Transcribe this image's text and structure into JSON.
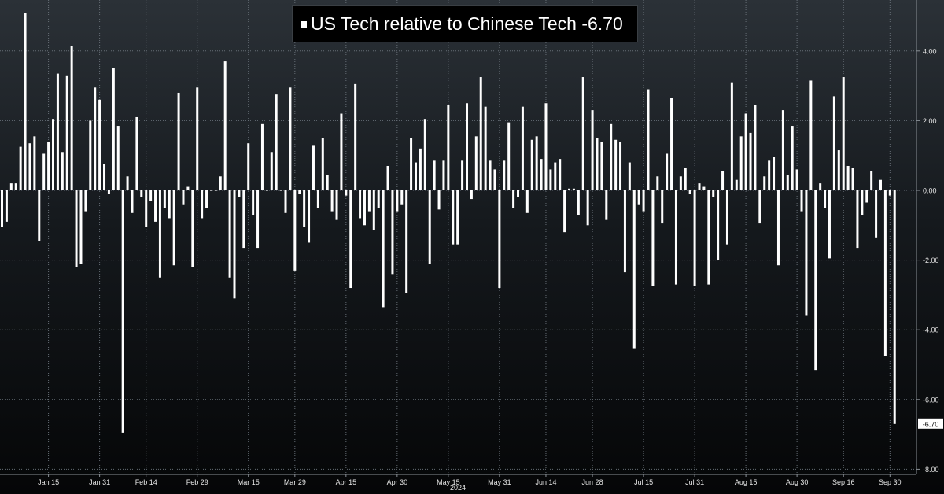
{
  "colors": {
    "bar": "#ffffff",
    "grid": "#666e76",
    "axis_text": "#e6e6e6",
    "background_top": "#2b3137",
    "background_bottom": "#050607"
  },
  "legend": {
    "label": "US Tech relative to Chinese Tech",
    "value": "-6.70"
  },
  "chart_data": {
    "type": "bar",
    "title": "",
    "xlabel": "2024",
    "ylabel": "",
    "ylim": [
      -8,
      5
    ],
    "grid": true,
    "y_ticks": [
      "4.00",
      "2.00",
      "0.00",
      "-2.00",
      "-4.00",
      "-6.00",
      "-8.00"
    ],
    "y_tick_values": [
      4,
      2,
      0,
      -2,
      -4,
      -6,
      -8
    ],
    "x_tick_labels": [
      "Jan 15",
      "Jan 31",
      "Feb 14",
      "Feb 29",
      "Mar 15",
      "Mar 29",
      "Apr 15",
      "Apr 30",
      "May 15",
      "May 31",
      "Jun 14",
      "Jun 28",
      "Jul 15",
      "Jul 31",
      "Aug 15",
      "Aug 30",
      "Sep 16",
      "Sep 30"
    ],
    "x_tick_index": [
      10,
      21,
      31,
      42,
      53,
      63,
      74,
      85,
      96,
      107,
      117,
      127,
      138,
      149,
      160,
      171,
      181,
      191
    ],
    "last_value_label": "-6.70",
    "series": [
      {
        "name": "US Tech relative to Chinese Tech",
        "values": [
          -1.05,
          -0.9,
          0.2,
          0.2,
          1.25,
          5.1,
          1.35,
          1.55,
          -1.45,
          1.05,
          1.4,
          2.05,
          3.35,
          1.1,
          3.3,
          4.15,
          -2.2,
          -2.1,
          -0.6,
          2.0,
          2.95,
          2.6,
          0.75,
          -0.1,
          3.5,
          1.85,
          -6.95,
          0.4,
          -0.65,
          2.1,
          -0.2,
          -1.05,
          -0.3,
          -0.9,
          -2.5,
          -0.5,
          -0.8,
          -2.15,
          2.8,
          -0.4,
          0.1,
          -2.2,
          2.95,
          -0.8,
          -0.5,
          0.0,
          0.0,
          0.4,
          3.7,
          -2.5,
          -3.1,
          -0.2,
          -1.65,
          1.35,
          -0.7,
          -1.65,
          1.9,
          0.0,
          1.1,
          2.75,
          0.0,
          -0.65,
          2.95,
          -2.3,
          -0.1,
          -1.05,
          -1.5,
          1.3,
          -0.5,
          1.5,
          0.45,
          -0.6,
          -0.85,
          2.2,
          -0.15,
          -2.8,
          3.05,
          -0.8,
          -1.0,
          -0.6,
          -1.15,
          -0.5,
          -3.35,
          0.7,
          -2.4,
          -0.6,
          -0.4,
          -2.95,
          1.5,
          0.8,
          1.2,
          2.05,
          -2.1,
          0.85,
          -0.55,
          0.85,
          2.45,
          -1.55,
          -1.55,
          0.85,
          2.5,
          -0.25,
          1.55,
          3.25,
          2.4,
          0.85,
          0.6,
          -2.8,
          0.85,
          1.95,
          -0.5,
          -0.2,
          2.4,
          -0.65,
          1.45,
          1.55,
          0.9,
          2.5,
          0.6,
          0.8,
          0.9,
          -1.2,
          0.05,
          0.05,
          -0.7,
          3.25,
          -1.0,
          2.3,
          1.5,
          1.4,
          -0.85,
          1.9,
          1.45,
          1.4,
          -2.35,
          0.8,
          -4.55,
          -0.4,
          -0.6,
          2.9,
          -2.75,
          0.4,
          -0.95,
          1.05,
          2.65,
          -2.7,
          0.4,
          0.65,
          -0.1,
          -2.75,
          0.2,
          0.1,
          -2.7,
          -0.2,
          -2.0,
          0.55,
          -1.55,
          3.1,
          0.3,
          1.55,
          2.2,
          1.65,
          2.45,
          -0.95,
          0.4,
          0.85,
          0.95,
          -2.15,
          2.3,
          0.45,
          1.85,
          0.6,
          -0.6,
          -3.6,
          3.15,
          -5.15,
          0.2,
          -0.5,
          -1.95,
          2.7,
          1.15,
          3.25,
          0.7,
          0.65,
          -1.65,
          -0.7,
          -0.35,
          0.55,
          -1.35,
          0.3,
          -4.75,
          -0.15,
          -6.7
        ]
      }
    ]
  }
}
